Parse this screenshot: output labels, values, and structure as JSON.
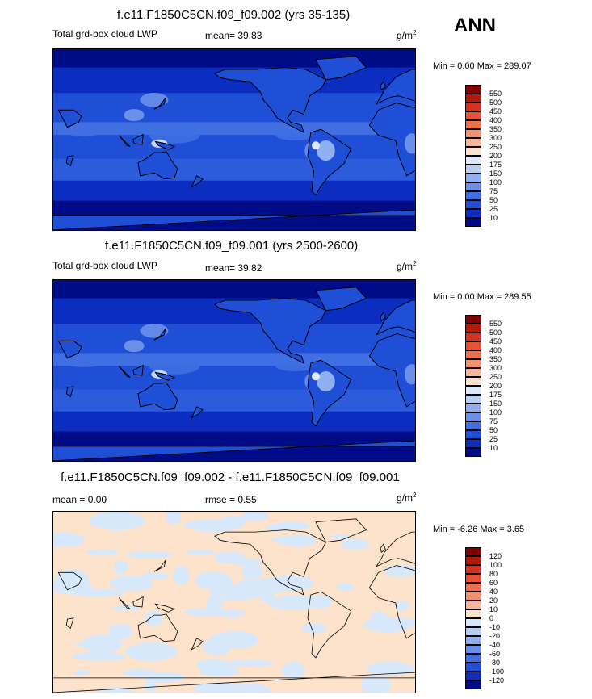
{
  "page": {
    "label": "ANN"
  },
  "panels": [
    {
      "title": "f.e11.F1850C5CN.f09_f09.002 (yrs 35-135)",
      "left_label": "Total grd-box cloud LWP",
      "stat_label": "mean=  39.83",
      "units_base": "g/m",
      "units_sup": "2",
      "minmax": "Min =   0.00 Max = 289.07",
      "map_kind": "field",
      "colorbar": {
        "labels": [
          "550",
          "500",
          "450",
          "400",
          "350",
          "300",
          "250",
          "200",
          "175",
          "150",
          "100",
          "75",
          "50",
          "25",
          "10"
        ],
        "colors": [
          "#800000",
          "#b41a0c",
          "#d7301f",
          "#ea5130",
          "#f06f4b",
          "#f39171",
          "#f6b598",
          "#fbe2cf",
          "#dde9fb",
          "#b7cef6",
          "#8fb0f0",
          "#6a90ea",
          "#3f6fe2",
          "#1f4fd6",
          "#0c2ec0",
          "#000c87"
        ]
      }
    },
    {
      "title": "f.e11.F1850C5CN.f09_f09.001 (yrs 2500-2600)",
      "left_label": "Total grd-box cloud LWP",
      "stat_label": "mean=  39.82",
      "units_base": "g/m",
      "units_sup": "2",
      "minmax": "Min =   0.00 Max = 289.55",
      "map_kind": "field",
      "colorbar": {
        "labels": [
          "550",
          "500",
          "450",
          "400",
          "350",
          "300",
          "250",
          "200",
          "175",
          "150",
          "100",
          "75",
          "50",
          "25",
          "10"
        ],
        "colors": [
          "#800000",
          "#b41a0c",
          "#d7301f",
          "#ea5130",
          "#f06f4b",
          "#f39171",
          "#f6b598",
          "#fbe2cf",
          "#dde9fb",
          "#b7cef6",
          "#8fb0f0",
          "#6a90ea",
          "#3f6fe2",
          "#1f4fd6",
          "#0c2ec0",
          "#000c87"
        ]
      }
    },
    {
      "title": "f.e11.F1850C5CN.f09_f09.002 - f.e11.F1850C5CN.f09_f09.001",
      "left_label": "mean =   0.00",
      "stat_label": "rmse =   0.55",
      "units_base": "g/m",
      "units_sup": "2",
      "minmax": "Min =  -6.26 Max =   3.65",
      "map_kind": "diff",
      "colorbar": {
        "labels": [
          "120",
          "100",
          "80",
          "60",
          "40",
          "20",
          "10",
          "0",
          "-10",
          "-20",
          "-40",
          "-60",
          "-80",
          "-100",
          "-120"
        ],
        "colors": [
          "#800000",
          "#b41a0c",
          "#d7301f",
          "#ea5130",
          "#f06f4b",
          "#f39171",
          "#f6b598",
          "#fde3cc",
          "#d7e8fb",
          "#b5cef6",
          "#8db0f0",
          "#6890ea",
          "#3f6fe2",
          "#1f4fd6",
          "#0c2ec0",
          "#000c87"
        ]
      }
    }
  ]
}
